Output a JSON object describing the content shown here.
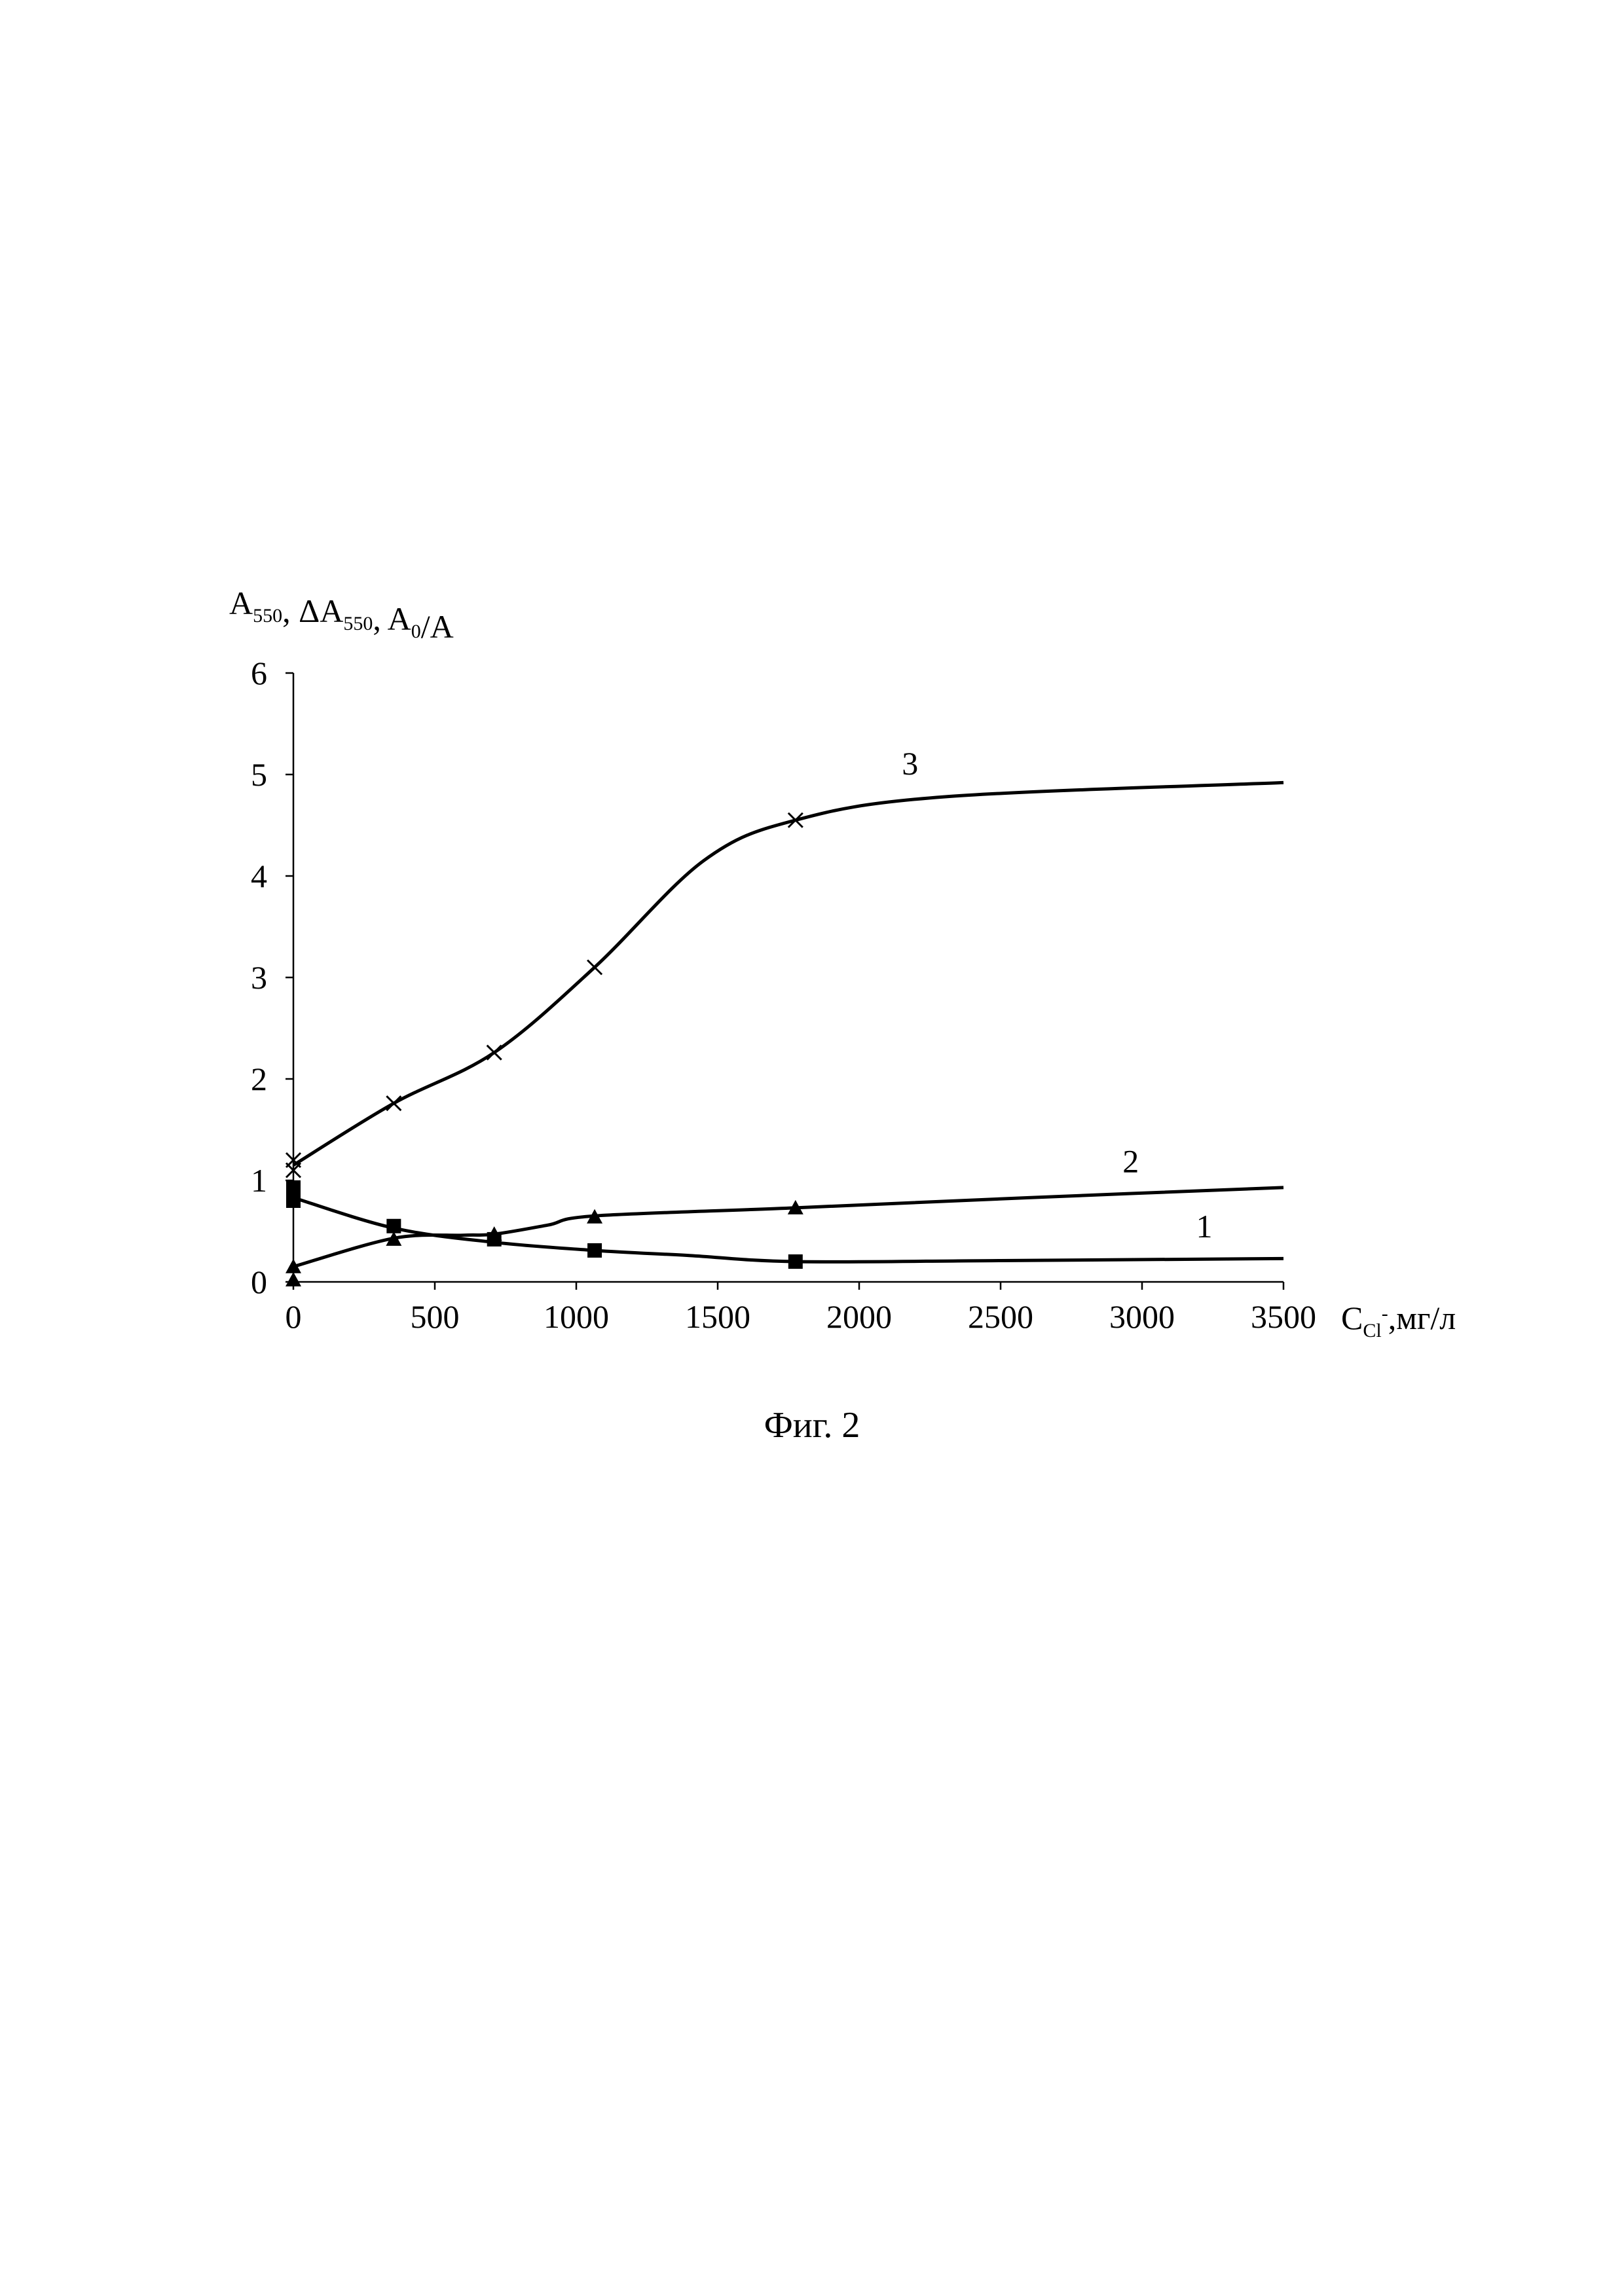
{
  "chart_data": {
    "type": "line",
    "ylabel": {
      "parts": [
        {
          "text": "A",
          "sub": "550"
        },
        {
          "text": ", ΔA",
          "sub": "550"
        },
        {
          "text": ", A",
          "sub": "0"
        },
        {
          "text": "/A",
          "sub": ""
        }
      ]
    },
    "xlabel": {
      "main": "C",
      "sub": "Cl",
      "sup": "-",
      "tail": ",мг/л"
    },
    "xlim": [
      0,
      3500
    ],
    "ylim": [
      0,
      6
    ],
    "x_ticks": [
      0,
      500,
      1000,
      1500,
      2000,
      2500,
      3000,
      3500
    ],
    "y_ticks": [
      0,
      1,
      2,
      3,
      4,
      5,
      6
    ],
    "grid": false,
    "legend": "none",
    "series": [
      {
        "name": "1",
        "marker": "square",
        "points": [
          [
            0,
            0.93
          ],
          [
            0,
            0.8
          ],
          [
            355,
            0.55
          ],
          [
            710,
            0.42
          ],
          [
            1065,
            0.31
          ],
          [
            1775,
            0.2
          ]
        ],
        "curve": [
          [
            0,
            0.83
          ],
          [
            355,
            0.53
          ],
          [
            710,
            0.39
          ],
          [
            1065,
            0.31
          ],
          [
            1400,
            0.26
          ],
          [
            1775,
            0.2
          ],
          [
            2500,
            0.21
          ],
          [
            3500,
            0.23
          ]
        ],
        "label_at": [
          3220,
          0.44
        ]
      },
      {
        "name": "2",
        "marker": "triangle",
        "points": [
          [
            0,
            0.02
          ],
          [
            0,
            0.15
          ],
          [
            355,
            0.42
          ],
          [
            710,
            0.47
          ],
          [
            1065,
            0.64
          ],
          [
            1775,
            0.73
          ]
        ],
        "curve": [
          [
            0,
            0.15
          ],
          [
            355,
            0.43
          ],
          [
            600,
            0.46
          ],
          [
            710,
            0.47
          ],
          [
            900,
            0.56
          ],
          [
            1065,
            0.65
          ],
          [
            1775,
            0.73
          ],
          [
            2600,
            0.83
          ],
          [
            3500,
            0.93
          ]
        ],
        "label_at": [
          2960,
          1.08
        ]
      },
      {
        "name": "3",
        "marker": "x",
        "points": [
          [
            0,
            1.2
          ],
          [
            0,
            1.1
          ],
          [
            355,
            1.76
          ],
          [
            710,
            2.26
          ],
          [
            1065,
            3.1
          ],
          [
            1775,
            4.55
          ]
        ],
        "curve": [
          [
            0,
            1.15
          ],
          [
            355,
            1.76
          ],
          [
            710,
            2.26
          ],
          [
            1065,
            3.1
          ],
          [
            1450,
            4.15
          ],
          [
            1775,
            4.55
          ],
          [
            2300,
            4.78
          ],
          [
            3500,
            4.92
          ]
        ],
        "label_at": [
          2180,
          5.0
        ]
      }
    ],
    "colors": {
      "line": "#000000",
      "axis": "#000000",
      "background": "#ffffff"
    }
  },
  "caption": "Фиг. 2"
}
